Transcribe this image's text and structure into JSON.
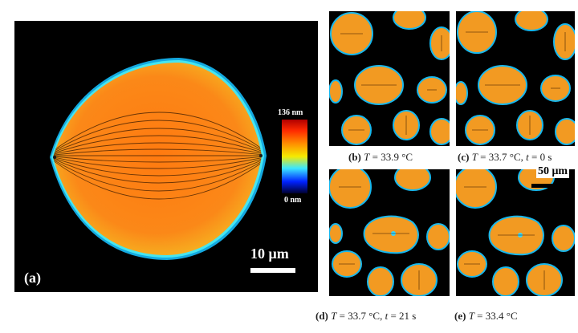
{
  "figure": {
    "panel_a": {
      "label": "(a)",
      "scale_bar": "10 μm",
      "colorbar": {
        "max_label": "136 nm",
        "min_label": "0 nm",
        "colormap": "jet"
      }
    },
    "panel_b": {
      "label": "(b)",
      "var": "T",
      "rest": " = 33.9 °C"
    },
    "panel_c": {
      "label": "(c)",
      "var": "T",
      "rest": " = 33.7 °C, ",
      "var2": "t",
      "rest2": " = 0 s"
    },
    "panel_d": {
      "label": "(d)",
      "var": "T",
      "rest": " = 33.7 °C,  ",
      "var2": "t",
      "rest2": " = 21 s"
    },
    "panel_e": {
      "label": "(e)",
      "var": "T",
      "rest": " = 33.4 °C"
    },
    "scale_bar_small": "50 μm"
  },
  "colors": {
    "droplet": "#f29a22",
    "halo": "#17b8ee",
    "background": "#000000"
  }
}
